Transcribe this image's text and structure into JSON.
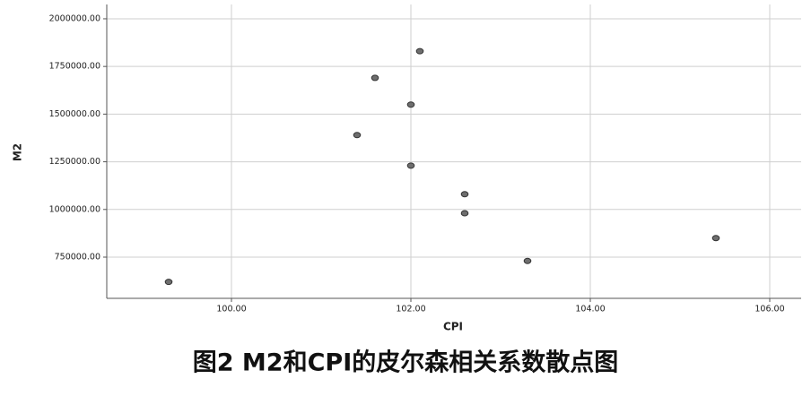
{
  "chart_data": {
    "type": "scatter",
    "title": "图2 M2和CPI的皮尔森相关系数散点图",
    "x_label": "CPI",
    "y_label": "M2",
    "x": [
      99.3,
      101.6,
      102.1,
      102.0,
      101.4,
      102.0,
      102.6,
      102.6,
      103.3,
      105.4
    ],
    "values": [
      620000,
      1690000,
      1830000,
      1550000,
      1390000,
      1230000,
      1080000,
      980000,
      730000,
      850000
    ],
    "color": "#6e6e6e",
    "xlim": [
      98.61,
      106.35
    ],
    "ylim": [
      533800,
      2075000
    ],
    "xticks": [
      {
        "value": 100,
        "label": "100.00"
      },
      {
        "value": 102,
        "label": "102.00"
      },
      {
        "value": 104,
        "label": "104.00"
      },
      {
        "value": 106,
        "label": "106.00"
      }
    ],
    "yticks": [
      {
        "value": 750000,
        "label": "750000.00"
      },
      {
        "value": 1000000,
        "label": "1000000.00"
      },
      {
        "value": 1250000,
        "label": "1250000.00"
      },
      {
        "value": 1500000,
        "label": "1500000.00"
      },
      {
        "value": 1750000,
        "label": "1750000.00"
      },
      {
        "value": 2000000,
        "label": "2000000.00"
      }
    ],
    "grid": true
  }
}
